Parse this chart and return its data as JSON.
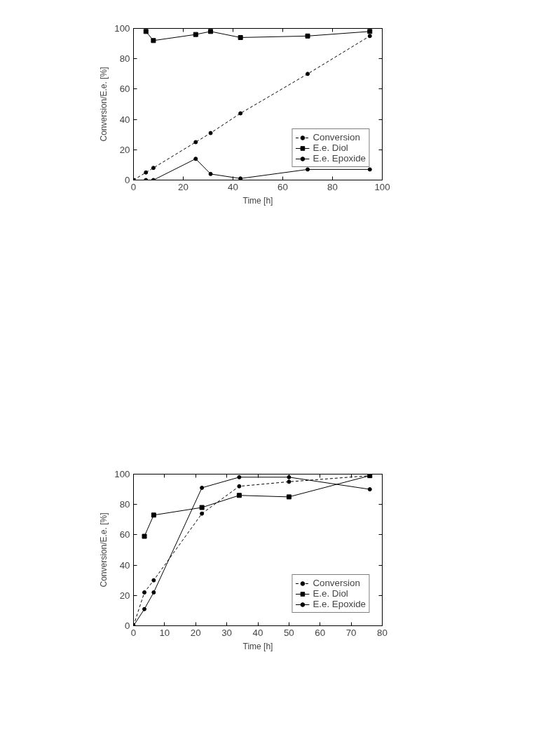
{
  "chart_data": [
    {
      "type": "line",
      "xlabel": "Time [h]",
      "ylabel": "Conversion/E.e. [%]",
      "xlim": [
        0,
        100
      ],
      "ylim": [
        0,
        100
      ],
      "xticks": [
        0,
        20,
        40,
        60,
        80,
        100
      ],
      "yticks": [
        0,
        20,
        40,
        60,
        80,
        100
      ],
      "grid": false,
      "legend": "bottom right",
      "series": [
        {
          "name": "Conversion",
          "color": "#000000",
          "line_style": "dashed",
          "marker": "circle",
          "x": [
            0,
            5,
            8,
            25,
            31,
            43,
            70,
            95
          ],
          "values": [
            0,
            5,
            8,
            25,
            31,
            44,
            70,
            95
          ]
        },
        {
          "name": "E.e. Diol",
          "color": "#000000",
          "line_style": "solid",
          "marker": "square",
          "x": [
            5,
            8,
            25,
            31,
            43,
            70,
            95
          ],
          "values": [
            98,
            92,
            96,
            98,
            94,
            95,
            98
          ]
        },
        {
          "name": "E.e. Epoxide",
          "color": "#000000",
          "line_style": "solid",
          "marker": "circle",
          "x": [
            0,
            5,
            8,
            25,
            31,
            43,
            70,
            95
          ],
          "values": [
            0,
            0,
            0,
            14,
            4,
            1,
            7,
            7
          ]
        }
      ]
    },
    {
      "type": "line",
      "xlabel": "Time [h]",
      "ylabel": "Conversion/E.e. [%]",
      "xlim": [
        0,
        80
      ],
      "ylim": [
        0,
        100
      ],
      "xticks": [
        0,
        10,
        20,
        30,
        40,
        50,
        60,
        70,
        80
      ],
      "yticks": [
        0,
        20,
        40,
        60,
        80,
        100
      ],
      "grid": false,
      "legend": "bottom right",
      "series": [
        {
          "name": "Conversion",
          "color": "#000000",
          "line_style": "dashed",
          "marker": "circle",
          "x": [
            0,
            3.5,
            6.5,
            22,
            34,
            50,
            76
          ],
          "values": [
            0,
            22,
            30,
            74,
            92,
            95,
            99
          ]
        },
        {
          "name": "E.e. Diol",
          "color": "#000000",
          "line_style": "solid",
          "marker": "square",
          "x": [
            3.5,
            6.5,
            22,
            34,
            50,
            76
          ],
          "values": [
            59,
            73,
            78,
            86,
            85,
            99
          ]
        },
        {
          "name": "E.e. Epoxide",
          "color": "#000000",
          "line_style": "solid",
          "marker": "circle",
          "x": [
            0,
            3.5,
            6.5,
            22,
            34,
            50,
            76
          ],
          "values": [
            0,
            11,
            22,
            91,
            98,
            98,
            90
          ]
        }
      ]
    }
  ]
}
